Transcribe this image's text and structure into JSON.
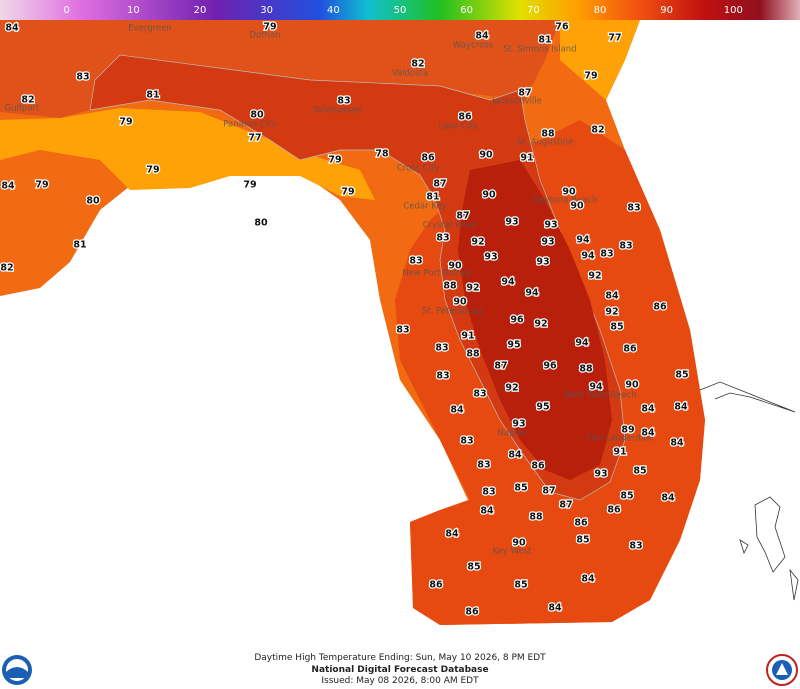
{
  "colorbar": {
    "range": [
      -10,
      110
    ],
    "ticks": [
      0,
      10,
      20,
      30,
      40,
      50,
      60,
      70,
      80,
      90,
      100
    ]
  },
  "cities": [
    "Evergreen",
    "Dothan",
    "Waycross",
    "St. Simons Island",
    "Valdosta",
    "Gulfport",
    "Tallahassee",
    "Jacksonville",
    "Panama City",
    "Lake City",
    "St. Augustine",
    "Cross City",
    "Cedar Key",
    "Crystal River",
    "Daytona Beach",
    "New Port Richey",
    "St. Petersburg",
    "West Palm Beach",
    "Fort Lauderdale",
    "Naples",
    "Key West"
  ],
  "temperatures": [
    84,
    79,
    84,
    81,
    76,
    77,
    83,
    82,
    79,
    82,
    81,
    83,
    87,
    79,
    80,
    86,
    88,
    82,
    77,
    90,
    91,
    79,
    78,
    86,
    79,
    87,
    84,
    79,
    79,
    79,
    90,
    90,
    80,
    81,
    87,
    90,
    83,
    93,
    93,
    80,
    83,
    92,
    93,
    94,
    83,
    81,
    93,
    94,
    83,
    83,
    90,
    93,
    92,
    82,
    88,
    92,
    94,
    94,
    84,
    90,
    92,
    86,
    96,
    92,
    85,
    83,
    91,
    94,
    86,
    83,
    95,
    88,
    96,
    88,
    87,
    83,
    85,
    94,
    90,
    92,
    83,
    84,
    95,
    84,
    84,
    89,
    84,
    93,
    83,
    91,
    84,
    84,
    86,
    93,
    85,
    83,
    83,
    85,
    87,
    85,
    84,
    87,
    84,
    86,
    88,
    86,
    84,
    90,
    85,
    83,
    85,
    86,
    85,
    84,
    86,
    84
  ],
  "footer": {
    "valid": "Daytime High Temperature Ending: Sun, May 10 2026, 8 PM EDT",
    "source": "National Digital Forecast Database",
    "issued": "Issued: May 08 2026, 8:00 AM EDT"
  }
}
